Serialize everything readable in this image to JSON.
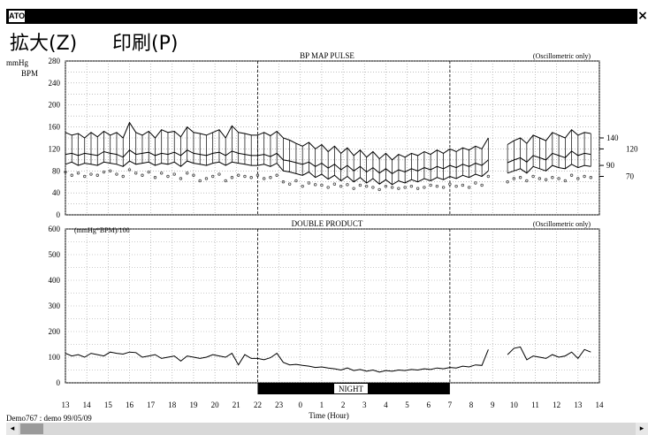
{
  "window": {
    "icon_label": "ATO",
    "close_label": "×"
  },
  "menu": {
    "zoom": "拡大(Z)",
    "print": "印刷(P)"
  },
  "footer": {
    "record": "Demo767 : demo  99/05/09"
  },
  "scrollbar": {
    "left_arrow": "◂",
    "right_arrow": "▸"
  },
  "chart_data": [
    {
      "type": "line",
      "title": "BP  MAP  PULSE",
      "note": "(Oscillometric only)",
      "ylabel": "mmHg",
      "ylabel2": "BPM",
      "ylim": [
        0,
        280
      ],
      "yticks": [
        0,
        40,
        80,
        120,
        160,
        200,
        240,
        280
      ],
      "right_labels": [
        "140",
        "120",
        "90",
        "70"
      ],
      "x": [
        13.0,
        13.3,
        13.6,
        13.9,
        14.2,
        14.5,
        14.8,
        15.1,
        15.4,
        15.7,
        16.0,
        16.3,
        16.6,
        16.9,
        17.2,
        17.5,
        17.8,
        18.1,
        18.4,
        18.7,
        19.0,
        19.3,
        19.6,
        19.9,
        20.2,
        20.5,
        20.8,
        21.1,
        21.4,
        21.7,
        22.0,
        22.3,
        22.6,
        22.9,
        23.2,
        23.5,
        23.8,
        24.1,
        24.4,
        24.7,
        25.0,
        25.3,
        25.6,
        25.9,
        26.2,
        26.5,
        26.8,
        27.1,
        27.4,
        27.7,
        28.0,
        28.3,
        28.6,
        28.9,
        29.2,
        29.5,
        29.8,
        30.1,
        30.4,
        30.7,
        31.0,
        31.3,
        31.6,
        31.9,
        32.2,
        32.5,
        32.8,
        33.1,
        33.4,
        33.7,
        34.0,
        34.3,
        34.6,
        34.9,
        35.2,
        35.5,
        35.8,
        36.1,
        36.4,
        36.7,
        37.0,
        37.3,
        37.6
      ],
      "series": [
        {
          "values": [
            150,
            145,
            148,
            140,
            150,
            142,
            152,
            145,
            150,
            140,
            168,
            150,
            145,
            152,
            140,
            155,
            150,
            152,
            142,
            160,
            150,
            148,
            145,
            150,
            155,
            140,
            162,
            150,
            148,
            145,
            145,
            150,
            144,
            152,
            140,
            136,
            130,
            125,
            132,
            120,
            128,
            115,
            125,
            112,
            122,
            108,
            118,
            105,
            115,
            102,
            112,
            100,
            110,
            105,
            112,
            108,
            115,
            110,
            118,
            112,
            120,
            115,
            122,
            118,
            125,
            120,
            140,
            null,
            null,
            128,
            135,
            140,
            130,
            145,
            140,
            135,
            150,
            145,
            140,
            155,
            145,
            150,
            148
          ]
        },
        {
          "values": [
            110,
            112,
            108,
            112,
            110,
            108,
            115,
            112,
            110,
            105,
            118,
            110,
            112,
            114,
            108,
            112,
            110,
            114,
            108,
            118,
            112,
            110,
            108,
            112,
            114,
            108,
            116,
            112,
            110,
            108,
            108,
            110,
            106,
            112,
            100,
            98,
            95,
            92,
            96,
            88,
            94,
            85,
            92,
            82,
            90,
            80,
            88,
            78,
            86,
            76,
            84,
            75,
            82,
            78,
            84,
            80,
            86,
            82,
            88,
            84,
            90,
            86,
            92,
            88,
            94,
            90,
            100,
            null,
            null,
            95,
            100,
            104,
            96,
            108,
            104,
            100,
            112,
            108,
            104,
            116,
            108,
            112,
            110
          ]
        },
        {
          "values": [
            92,
            96,
            90,
            94,
            92,
            90,
            96,
            94,
            92,
            88,
            98,
            92,
            94,
            96,
            90,
            94,
            92,
            96,
            88,
            98,
            94,
            92,
            90,
            94,
            96,
            90,
            96,
            94,
            92,
            90,
            90,
            92,
            88,
            94,
            80,
            78,
            75,
            72,
            78,
            68,
            74,
            65,
            72,
            62,
            70,
            60,
            68,
            58,
            66,
            56,
            64,
            55,
            62,
            58,
            64,
            60,
            66,
            62,
            68,
            64,
            70,
            66,
            72,
            68,
            74,
            70,
            80,
            null,
            null,
            76,
            80,
            84,
            76,
            88,
            84,
            80,
            90,
            86,
            84,
            92,
            86,
            90,
            88
          ]
        },
        {
          "values": [
            78,
            72,
            76,
            70,
            74,
            72,
            78,
            80,
            74,
            70,
            82,
            76,
            72,
            78,
            68,
            76,
            70,
            74,
            66,
            76,
            72,
            62,
            66,
            70,
            74,
            62,
            68,
            72,
            70,
            68,
            72,
            66,
            68,
            72,
            60,
            56,
            62,
            52,
            58,
            55,
            54,
            50,
            56,
            52,
            55,
            48,
            54,
            52,
            50,
            46,
            52,
            50,
            48,
            50,
            52,
            48,
            50,
            54,
            52,
            50,
            56,
            52,
            54,
            50,
            58,
            54,
            70,
            null,
            null,
            60,
            66,
            68,
            62,
            70,
            66,
            64,
            68,
            66,
            62,
            72,
            66,
            70,
            68
          ]
        }
      ]
    },
    {
      "type": "line",
      "title": "DOUBLE PRODUCT",
      "note": "(Oscillometric only)",
      "ylabel": "(mmHg*BPM)/100",
      "ylim": [
        0,
        600
      ],
      "yticks": [
        0,
        100,
        200,
        300,
        400,
        500,
        600
      ],
      "x": [
        13.0,
        13.3,
        13.6,
        13.9,
        14.2,
        14.5,
        14.8,
        15.1,
        15.4,
        15.7,
        16.0,
        16.3,
        16.6,
        16.9,
        17.2,
        17.5,
        17.8,
        18.1,
        18.4,
        18.7,
        19.0,
        19.3,
        19.6,
        19.9,
        20.2,
        20.5,
        20.8,
        21.1,
        21.4,
        21.7,
        22.0,
        22.3,
        22.6,
        22.9,
        23.2,
        23.5,
        23.8,
        24.1,
        24.4,
        24.7,
        25.0,
        25.3,
        25.6,
        25.9,
        26.2,
        26.5,
        26.8,
        27.1,
        27.4,
        27.7,
        28.0,
        28.3,
        28.6,
        28.9,
        29.2,
        29.5,
        29.8,
        30.1,
        30.4,
        30.7,
        31.0,
        31.3,
        31.6,
        31.9,
        32.2,
        32.5,
        32.8,
        33.1,
        33.4,
        33.7,
        34.0,
        34.3,
        34.6,
        34.9,
        35.2,
        35.5,
        35.8,
        36.1,
        36.4,
        36.7,
        37.0,
        37.3,
        37.6
      ],
      "series": [
        {
          "values": [
            115,
            105,
            110,
            100,
            115,
            110,
            105,
            120,
            115,
            112,
            120,
            118,
            100,
            105,
            110,
            95,
            100,
            105,
            85,
            105,
            100,
            95,
            100,
            110,
            105,
            100,
            115,
            70,
            110,
            95,
            95,
            90,
            98,
            115,
            80,
            70,
            72,
            68,
            65,
            60,
            62,
            58,
            55,
            50,
            58,
            48,
            52,
            45,
            50,
            42,
            48,
            45,
            50,
            48,
            52,
            50,
            55,
            52,
            58,
            55,
            60,
            58,
            65,
            62,
            70,
            68,
            130,
            null,
            null,
            110,
            135,
            140,
            90,
            105,
            100,
            95,
            110,
            100,
            105,
            120,
            95,
            130,
            120
          ]
        }
      ],
      "x_ticks": [
        "13",
        "14",
        "15",
        "16",
        "17",
        "18",
        "19",
        "20",
        "21",
        "22",
        "23",
        "0",
        "1",
        "2",
        "3",
        "4",
        "5",
        "6",
        "7",
        "8",
        "9",
        "10",
        "11",
        "12",
        "13",
        "14"
      ],
      "xlabel": "Time (Hour)",
      "night_label": "NIGHT",
      "night_range": [
        22,
        31
      ]
    }
  ]
}
